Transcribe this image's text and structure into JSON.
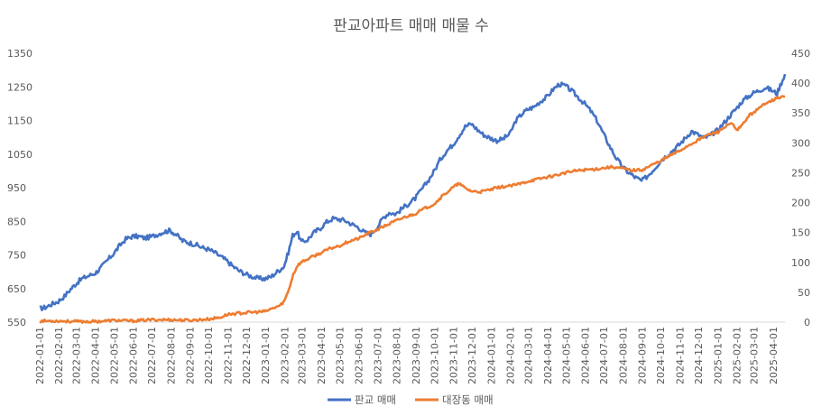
{
  "chart_data": {
    "type": "line",
    "title": "판교아파트 매매 매물 수",
    "xlabel": "",
    "ylabel": "",
    "x_ticks": [
      "2022-01-01",
      "2022-02-01",
      "2022-03-01",
      "2022-04-01",
      "2022-05-01",
      "2022-06-01",
      "2022-07-01",
      "2022-08-01",
      "2022-09-01",
      "2022-10-01",
      "2022-11-01",
      "2022-12-01",
      "2023-01-01",
      "2023-02-01",
      "2023-03-01",
      "2023-04-01",
      "2023-05-01",
      "2023-06-01",
      "2023-07-01",
      "2023-08-01",
      "2023-09-01",
      "2023-10-01",
      "2023-11-01",
      "2023-12-01",
      "2024-01-01",
      "2024-02-01",
      "2024-03-01",
      "2024-04-01",
      "2024-05-01",
      "2024-06-01",
      "2024-07-01",
      "2024-08-01",
      "2024-09-01",
      "2024-10-01",
      "2024-11-01",
      "2024-12-01",
      "2025-01-01",
      "2025-02-01",
      "2025-03-01",
      "2025-04-01"
    ],
    "x_range": [
      "2022-01-01",
      "2025-04-20"
    ],
    "y_left": {
      "ticks": [
        550,
        650,
        750,
        850,
        950,
        1050,
        1150,
        1250,
        1350
      ],
      "range": [
        550,
        1350
      ]
    },
    "y_right": {
      "ticks": [
        0,
        50,
        100,
        150,
        200,
        250,
        300,
        350,
        400,
        450
      ],
      "range": [
        0,
        450
      ]
    },
    "grid": false,
    "legend_position": "bottom",
    "series": [
      {
        "name": "판교 매매",
        "axis": "left",
        "color": "#4472C4",
        "points": [
          [
            "2022-01-01",
            590
          ],
          [
            "2022-01-10",
            594
          ],
          [
            "2022-01-20",
            603
          ],
          [
            "2022-01-31",
            612
          ],
          [
            "2022-02-10",
            627
          ],
          [
            "2022-02-20",
            648
          ],
          [
            "2022-03-01",
            665
          ],
          [
            "2022-03-10",
            679
          ],
          [
            "2022-03-20",
            687
          ],
          [
            "2022-04-01",
            696
          ],
          [
            "2022-04-10",
            712
          ],
          [
            "2022-04-20",
            733
          ],
          [
            "2022-05-01",
            755
          ],
          [
            "2022-05-10",
            777
          ],
          [
            "2022-05-20",
            797
          ],
          [
            "2022-05-31",
            805
          ],
          [
            "2022-06-10",
            805
          ],
          [
            "2022-06-20",
            800
          ],
          [
            "2022-06-30",
            804
          ],
          [
            "2022-07-10",
            811
          ],
          [
            "2022-07-20",
            818
          ],
          [
            "2022-07-31",
            823
          ],
          [
            "2022-08-10",
            810
          ],
          [
            "2022-08-20",
            792
          ],
          [
            "2022-08-31",
            786
          ],
          [
            "2022-09-10",
            781
          ],
          [
            "2022-09-20",
            772
          ],
          [
            "2022-09-30",
            767
          ],
          [
            "2022-10-10",
            758
          ],
          [
            "2022-10-20",
            746
          ],
          [
            "2022-10-31",
            732
          ],
          [
            "2022-11-10",
            715
          ],
          [
            "2022-11-20",
            702
          ],
          [
            "2022-11-30",
            693
          ],
          [
            "2022-12-10",
            686
          ],
          [
            "2022-12-20",
            680
          ],
          [
            "2022-12-31",
            679
          ],
          [
            "2023-01-10",
            685
          ],
          [
            "2023-01-20",
            700
          ],
          [
            "2023-01-31",
            716
          ],
          [
            "2023-02-07",
            758
          ],
          [
            "2023-02-14",
            808
          ],
          [
            "2023-02-21",
            820
          ],
          [
            "2023-02-28",
            788
          ],
          [
            "2023-03-10",
            795
          ],
          [
            "2023-03-20",
            816
          ],
          [
            "2023-03-31",
            830
          ],
          [
            "2023-04-10",
            848
          ],
          [
            "2023-04-20",
            858
          ],
          [
            "2023-04-30",
            856
          ],
          [
            "2023-05-10",
            852
          ],
          [
            "2023-05-20",
            842
          ],
          [
            "2023-05-31",
            832
          ],
          [
            "2023-06-10",
            817
          ],
          [
            "2023-06-20",
            812
          ],
          [
            "2023-06-30",
            830
          ],
          [
            "2023-07-10",
            860
          ],
          [
            "2023-07-20",
            876
          ],
          [
            "2023-07-31",
            872
          ],
          [
            "2023-08-10",
            888
          ],
          [
            "2023-08-20",
            902
          ],
          [
            "2023-08-31",
            918
          ],
          [
            "2023-09-10",
            943
          ],
          [
            "2023-09-20",
            968
          ],
          [
            "2023-09-30",
            997
          ],
          [
            "2023-10-10",
            1032
          ],
          [
            "2023-10-20",
            1058
          ],
          [
            "2023-10-31",
            1078
          ],
          [
            "2023-11-10",
            1105
          ],
          [
            "2023-11-20",
            1132
          ],
          [
            "2023-11-30",
            1140
          ],
          [
            "2023-12-10",
            1122
          ],
          [
            "2023-12-20",
            1107
          ],
          [
            "2023-12-31",
            1097
          ],
          [
            "2024-01-10",
            1090
          ],
          [
            "2024-01-20",
            1095
          ],
          [
            "2024-01-31",
            1110
          ],
          [
            "2024-02-10",
            1150
          ],
          [
            "2024-02-20",
            1170
          ],
          [
            "2024-02-29",
            1183
          ],
          [
            "2024-03-10",
            1190
          ],
          [
            "2024-03-20",
            1206
          ],
          [
            "2024-03-31",
            1220
          ],
          [
            "2024-04-10",
            1242
          ],
          [
            "2024-04-20",
            1258
          ],
          [
            "2024-04-30",
            1253
          ],
          [
            "2024-05-10",
            1238
          ],
          [
            "2024-05-20",
            1220
          ],
          [
            "2024-05-31",
            1200
          ],
          [
            "2024-06-10",
            1178
          ],
          [
            "2024-06-20",
            1150
          ],
          [
            "2024-06-30",
            1112
          ],
          [
            "2024-07-10",
            1075
          ],
          [
            "2024-07-20",
            1042
          ],
          [
            "2024-07-31",
            1012
          ],
          [
            "2024-08-10",
            995
          ],
          [
            "2024-08-20",
            982
          ],
          [
            "2024-08-31",
            970
          ],
          [
            "2024-09-10",
            985
          ],
          [
            "2024-09-20",
            1005
          ],
          [
            "2024-09-30",
            1028
          ],
          [
            "2024-10-10",
            1045
          ],
          [
            "2024-10-20",
            1060
          ],
          [
            "2024-10-31",
            1078
          ],
          [
            "2024-11-10",
            1098
          ],
          [
            "2024-11-20",
            1118
          ],
          [
            "2024-11-30",
            1108
          ],
          [
            "2024-12-10",
            1098
          ],
          [
            "2024-12-20",
            1105
          ],
          [
            "2024-12-31",
            1120
          ],
          [
            "2025-01-10",
            1140
          ],
          [
            "2025-01-20",
            1162
          ],
          [
            "2025-01-31",
            1185
          ],
          [
            "2025-02-10",
            1208
          ],
          [
            "2025-02-20",
            1222
          ],
          [
            "2025-02-28",
            1232
          ],
          [
            "2025-03-10",
            1240
          ],
          [
            "2025-03-20",
            1248
          ],
          [
            "2025-03-31",
            1238
          ],
          [
            "2025-04-07",
            1230
          ],
          [
            "2025-04-14",
            1262
          ],
          [
            "2025-04-20",
            1288
          ]
        ]
      },
      {
        "name": "대장동 매매",
        "axis": "right",
        "color": "#ED7D31",
        "points": [
          [
            "2022-01-01",
            2
          ],
          [
            "2022-02-01",
            2
          ],
          [
            "2022-03-01",
            1
          ],
          [
            "2022-04-01",
            1
          ],
          [
            "2022-05-01",
            3
          ],
          [
            "2022-06-01",
            2
          ],
          [
            "2022-07-01",
            4
          ],
          [
            "2022-08-01",
            4
          ],
          [
            "2022-09-01",
            3
          ],
          [
            "2022-10-01",
            5
          ],
          [
            "2022-10-20",
            8
          ],
          [
            "2022-11-01",
            13
          ],
          [
            "2022-11-20",
            15
          ],
          [
            "2022-12-01",
            16
          ],
          [
            "2022-12-20",
            17
          ],
          [
            "2023-01-01",
            18
          ],
          [
            "2023-01-15",
            24
          ],
          [
            "2023-01-25",
            28
          ],
          [
            "2023-02-01",
            36
          ],
          [
            "2023-02-08",
            55
          ],
          [
            "2023-02-15",
            80
          ],
          [
            "2023-02-22",
            95
          ],
          [
            "2023-03-01",
            101
          ],
          [
            "2023-03-15",
            108
          ],
          [
            "2023-04-01",
            116
          ],
          [
            "2023-04-15",
            123
          ],
          [
            "2023-05-01",
            128
          ],
          [
            "2023-05-15",
            135
          ],
          [
            "2023-06-01",
            140
          ],
          [
            "2023-06-15",
            148
          ],
          [
            "2023-07-01",
            155
          ],
          [
            "2023-07-15",
            162
          ],
          [
            "2023-08-01",
            170
          ],
          [
            "2023-08-15",
            176
          ],
          [
            "2023-09-01",
            182
          ],
          [
            "2023-09-15",
            190
          ],
          [
            "2023-10-01",
            198
          ],
          [
            "2023-10-15",
            212
          ],
          [
            "2023-11-01",
            226
          ],
          [
            "2023-11-10",
            232
          ],
          [
            "2023-11-20",
            224
          ],
          [
            "2023-12-01",
            219
          ],
          [
            "2023-12-15",
            218
          ],
          [
            "2024-01-01",
            222
          ],
          [
            "2024-01-15",
            226
          ],
          [
            "2024-02-01",
            228
          ],
          [
            "2024-02-15",
            231
          ],
          [
            "2024-03-01",
            236
          ],
          [
            "2024-03-15",
            239
          ],
          [
            "2024-04-01",
            243
          ],
          [
            "2024-04-15",
            246
          ],
          [
            "2024-05-01",
            250
          ],
          [
            "2024-05-15",
            253
          ],
          [
            "2024-06-01",
            255
          ],
          [
            "2024-06-15",
            256
          ],
          [
            "2024-07-01",
            258
          ],
          [
            "2024-07-15",
            260
          ],
          [
            "2024-08-01",
            257
          ],
          [
            "2024-08-15",
            254
          ],
          [
            "2024-09-01",
            255
          ],
          [
            "2024-09-15",
            262
          ],
          [
            "2024-10-01",
            270
          ],
          [
            "2024-10-15",
            278
          ],
          [
            "2024-11-01",
            287
          ],
          [
            "2024-11-15",
            296
          ],
          [
            "2024-12-01",
            305
          ],
          [
            "2024-12-15",
            313
          ],
          [
            "2025-01-01",
            318
          ],
          [
            "2025-01-15",
            328
          ],
          [
            "2025-01-25",
            332
          ],
          [
            "2025-02-01",
            320
          ],
          [
            "2025-02-10",
            330
          ],
          [
            "2025-02-20",
            345
          ],
          [
            "2025-03-01",
            352
          ],
          [
            "2025-03-10",
            358
          ],
          [
            "2025-03-20",
            368
          ],
          [
            "2025-04-01",
            372
          ],
          [
            "2025-04-10",
            376
          ],
          [
            "2025-04-20",
            378
          ]
        ]
      }
    ]
  }
}
